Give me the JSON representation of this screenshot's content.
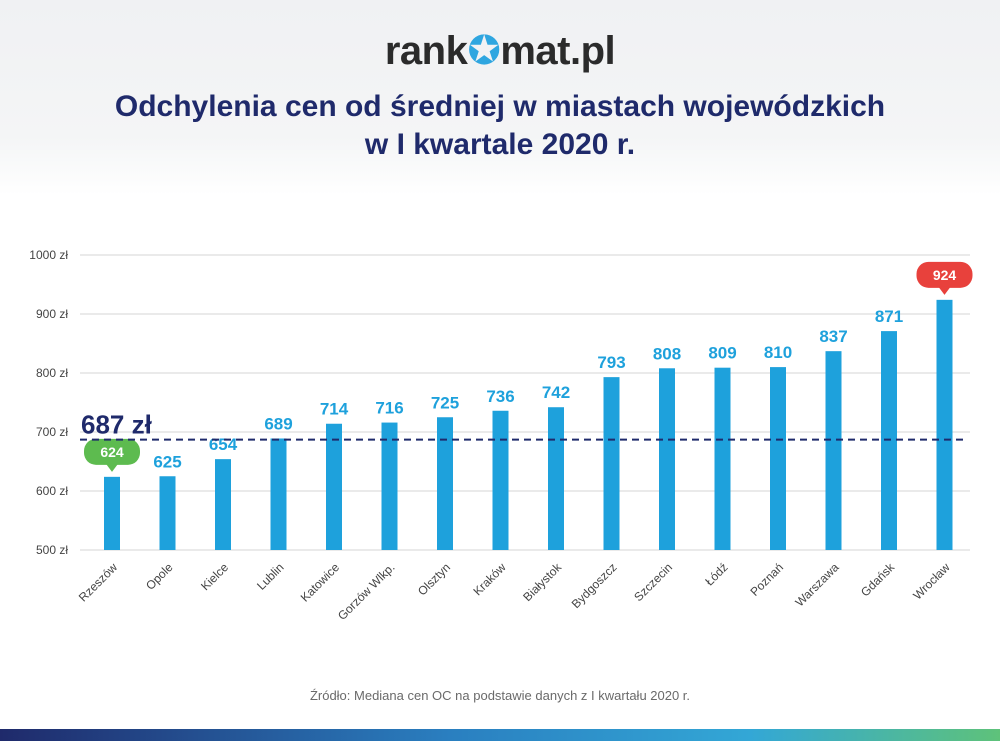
{
  "header": {
    "logo_left": "rank",
    "logo_right": "mat.pl",
    "title_line1": "Odchylenia cen od średniej w miastach wojewódzkich",
    "title_line2": "w I kwartale 2020 r."
  },
  "source": "Źródło: Mediana cen OC na podstawie danych z I kwartału 2020 r.",
  "colors": {
    "bar": "#1ea1dc",
    "value_label": "#1ea1dc",
    "average_line": "#1f2a6b",
    "min_badge": "#5dbb4f",
    "max_badge": "#e8413c",
    "grid": "#d6d6d6",
    "tick_text": "#444444"
  },
  "chart_data": {
    "type": "bar",
    "categories": [
      "Rzeszów",
      "Opole",
      "Kielce",
      "Lublin",
      "Katowice",
      "Gorzów Wlkp.",
      "Olsztyn",
      "Kraków",
      "Białystok",
      "Bydgoszcz",
      "Szczecin",
      "Łódź",
      "Poznań",
      "Warszawa",
      "Gdańsk",
      "Wrocław"
    ],
    "values": [
      624,
      625,
      654,
      689,
      714,
      716,
      725,
      736,
      742,
      793,
      808,
      809,
      810,
      837,
      871,
      924
    ],
    "ylim": [
      500,
      1000
    ],
    "y_ticks": [
      500,
      600,
      700,
      800,
      900,
      1000
    ],
    "y_tick_labels": [
      "500 zł",
      "600 zł",
      "700 zł",
      "800 zł",
      "900 zł",
      "1000 zł"
    ],
    "average_value": 687,
    "average_label": "687 zł",
    "min_highlight_index": 0,
    "max_highlight_index": 15,
    "grid": true
  }
}
